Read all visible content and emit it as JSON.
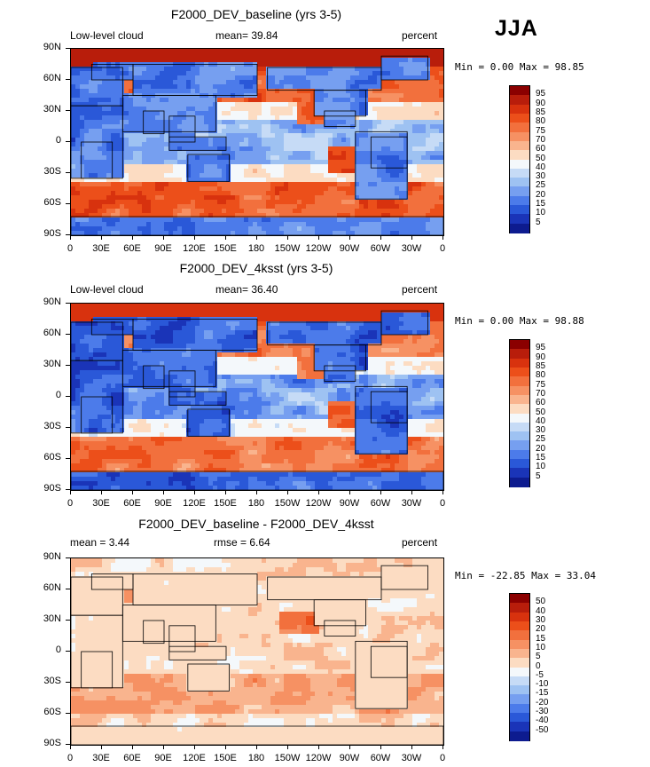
{
  "season_label": "JJA",
  "x_ticks": [
    "0",
    "30E",
    "60E",
    "90E",
    "120E",
    "150E",
    "180",
    "150W",
    "120W",
    "90W",
    "60W",
    "30W",
    "0"
  ],
  "y_ticks": [
    "90N",
    "60N",
    "30N",
    "0",
    "30S",
    "60S",
    "90S"
  ],
  "panels": [
    {
      "title": "F2000_DEV_baseline (yrs 3-5)",
      "left_label": "Low-level cloud",
      "center_label": "mean=  39.84",
      "right_label": "percent",
      "minmax": "Min =   0.00 Max =  98.85",
      "colorbar_levels": [
        "95",
        "90",
        "85",
        "80",
        "75",
        "70",
        "60",
        "50",
        "40",
        "30",
        "25",
        "20",
        "15",
        "10",
        "5"
      ],
      "colorbar_colors": [
        "#8b0000",
        "#b81d0b",
        "#d8320e",
        "#ec4f1a",
        "#f2703d",
        "#f69163",
        "#f9b48e",
        "#fcdcc2",
        "#f4f8fb",
        "#c6dbf6",
        "#9ec2f2",
        "#769ff0",
        "#4c7bea",
        "#2a58d8",
        "#1a34b8",
        "#0d1b8f"
      ],
      "field": "baseline",
      "mean": 39.84,
      "min": 0.0,
      "max": 98.85
    },
    {
      "title": "F2000_DEV_4ksst (yrs 3-5)",
      "left_label": "Low-level cloud",
      "center_label": "mean=  36.40",
      "right_label": "percent",
      "minmax": "Min =   0.00 Max =  98.88",
      "colorbar_levels": [
        "95",
        "90",
        "85",
        "80",
        "75",
        "70",
        "60",
        "50",
        "40",
        "30",
        "25",
        "20",
        "15",
        "10",
        "5"
      ],
      "colorbar_colors": [
        "#8b0000",
        "#b81d0b",
        "#d8320e",
        "#ec4f1a",
        "#f2703d",
        "#f69163",
        "#f9b48e",
        "#fcdcc2",
        "#f4f8fb",
        "#c6dbf6",
        "#9ec2f2",
        "#769ff0",
        "#4c7bea",
        "#2a58d8",
        "#1a34b8",
        "#0d1b8f"
      ],
      "field": "4ksst",
      "mean": 36.4,
      "min": 0.0,
      "max": 98.88
    },
    {
      "title": "F2000_DEV_baseline - F2000_DEV_4ksst",
      "left_label": "mean =    3.44",
      "center_label": "rmse =    6.64",
      "right_label": "percent",
      "minmax": "Min = -22.85 Max =  33.04",
      "colorbar_levels": [
        "50",
        "40",
        "30",
        "20",
        "15",
        "10",
        "5",
        "0",
        "-5",
        "-10",
        "-15",
        "-20",
        "-30",
        "-40",
        "-50"
      ],
      "colorbar_colors": [
        "#8b0000",
        "#b81d0b",
        "#d8320e",
        "#ec4f1a",
        "#f2703d",
        "#f69163",
        "#f9b48e",
        "#fcdcc2",
        "#f4f8fb",
        "#c6dbf6",
        "#9ec2f2",
        "#769ff0",
        "#4c7bea",
        "#2a58d8",
        "#1a34b8",
        "#0d1b8f"
      ],
      "field": "diff",
      "mean": 3.44,
      "min": -22.85,
      "max": 33.04
    }
  ]
}
